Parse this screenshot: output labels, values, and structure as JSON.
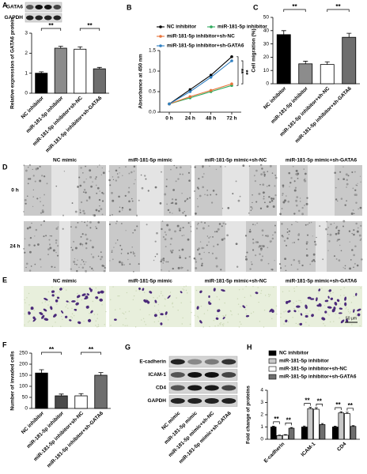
{
  "chart_data": [
    {
      "type": "bar",
      "panel": "A",
      "blot_labels": [
        "GATA6",
        "GAPDH"
      ],
      "ylabel": "Relative expression of GATA6 protein",
      "categories": [
        "NC inhibitor",
        "miR-181-5p inhibitor",
        "miR-181-5p inhibitor+sh-NC",
        "miR-181-5p inhibitor+sh-GATA6"
      ],
      "values": [
        1.0,
        2.25,
        2.2,
        1.22
      ],
      "errors": [
        0.07,
        0.1,
        0.12,
        0.07
      ],
      "colors": [
        "#000000",
        "#8c8c8c",
        "#ffffff",
        "#6e6e6e"
      ],
      "ylim": [
        0,
        3
      ],
      "yticks": [
        0,
        1,
        2,
        3
      ],
      "annotations": [
        "**",
        "**"
      ]
    },
    {
      "type": "line",
      "panel": "B",
      "ylabel": "Absorbance at 450 nm",
      "categories": [
        "0 h",
        "24 h",
        "48 h",
        "72 h"
      ],
      "series": [
        {
          "name": "NC inhibitor",
          "color": "#000000",
          "values": [
            0.2,
            0.55,
            0.9,
            1.35
          ]
        },
        {
          "name": "miR-181-5p inhibitor",
          "color": "#2eaa5c",
          "values": [
            0.2,
            0.35,
            0.5,
            0.65
          ]
        },
        {
          "name": "miR-181-5p inhibitor+sh-NC",
          "color": "#e8743b",
          "values": [
            0.2,
            0.38,
            0.53,
            0.69
          ]
        },
        {
          "name": "miR-181-5p inhibitor+sh-GATA6",
          "color": "#2f7fc1",
          "values": [
            0.2,
            0.5,
            0.85,
            1.25
          ]
        }
      ],
      "ylim": [
        0,
        1.5
      ],
      "yticks": [
        {
          "value": 0,
          "label": "0.0"
        },
        0.5,
        {
          "value": 1,
          "label": "1.0"
        },
        1.5
      ],
      "annotations": [
        "**",
        "**"
      ]
    },
    {
      "type": "bar",
      "panel": "C",
      "ylabel": "Cell migration (%)",
      "categories": [
        "NC inhibitor",
        "miR-181-5p inhibitor",
        "miR-181-5p inhibitor+sh-NC",
        "miR-181-5p inhibitor+sh-GATA6"
      ],
      "values": [
        37,
        15,
        14.5,
        35
      ],
      "errors": [
        3,
        2,
        2,
        3
      ],
      "colors": [
        "#000000",
        "#8c8c8c",
        "#ffffff",
        "#6e6e6e"
      ],
      "ylim": [
        0,
        50
      ],
      "yticks": [
        0,
        10,
        20,
        30,
        40,
        50
      ],
      "annotations": [
        "**",
        "**"
      ]
    },
    {
      "type": "bar",
      "panel": "F",
      "ylabel": "Number of invaded cells",
      "categories": [
        "NC inhibitor",
        "miR-181-5p inhibitor",
        "miR-181-5p inhibitor+sh-NC",
        "miR-181-5p inhibitor+sh-GATA6"
      ],
      "values": [
        160,
        57,
        57,
        150
      ],
      "errors": [
        15,
        8,
        10,
        12
      ],
      "colors": [
        "#000000",
        "#4a4a4a",
        "#ffffff",
        "#6e6e6e"
      ],
      "ylim": [
        0,
        250
      ],
      "yticks": [
        0,
        50,
        100,
        150,
        200,
        250
      ],
      "annotations": [
        "**",
        "**"
      ]
    },
    {
      "type": "grouped-bar",
      "panel": "H",
      "ylabel": "Fold change of proteins",
      "categories": [
        "E-cadherin",
        "ICAM-1",
        "CD4"
      ],
      "series": [
        {
          "name": "NC inhibitor",
          "color": "#000000",
          "values": [
            1.0,
            1.0,
            1.0
          ],
          "errors": [
            0.06,
            0.08,
            0.06
          ]
        },
        {
          "name": "miR-181-5p inhibitor",
          "color": "#c8c8c8",
          "values": [
            0.3,
            2.5,
            2.15
          ],
          "errors": [
            0.04,
            0.1,
            0.1
          ]
        },
        {
          "name": "miR-181-5p inhibitor+sh-NC",
          "color": "#ffffff",
          "values": [
            0.33,
            2.45,
            2.1
          ],
          "errors": [
            0.05,
            0.12,
            0.1
          ]
        },
        {
          "name": "miR-181-5p inhibitor+sh-GATA6",
          "color": "#6e6e6e",
          "values": [
            0.9,
            1.2,
            1.05
          ],
          "errors": [
            0.06,
            0.08,
            0.06
          ]
        }
      ],
      "ylim": [
        0,
        4
      ],
      "yticks": [
        0,
        1,
        2,
        3,
        4
      ],
      "legend": "top-left",
      "annotations": [
        "**",
        "**",
        "**",
        "**",
        "**",
        "**"
      ]
    }
  ],
  "images": [
    {
      "panel": "D",
      "columns": [
        "NC mimic",
        "miR-181-5p mimic",
        "miR-181-5p mimic+sh-NC",
        "miR-181-5p mimic+sh-GATA6"
      ],
      "rows": [
        "0 h",
        "24 h"
      ]
    },
    {
      "panel": "E",
      "columns": [
        "NC mimic",
        "miR-181-5p mimic",
        "miR-181-5p mimic+sh-NC",
        "miR-181-5p mimic+sh-GATA6"
      ],
      "scale_bar": "50 μm"
    }
  ],
  "blot": {
    "panel": "G",
    "proteins": [
      "E-cadherin",
      "ICAM-1",
      "CD4",
      "GAPDH"
    ],
    "lanes": [
      "NC mimic",
      "miR-181-5p mimic",
      "miR-181-5p mimic+sh-NC",
      "miR-181-5p mimic+sh-GATA6"
    ]
  }
}
